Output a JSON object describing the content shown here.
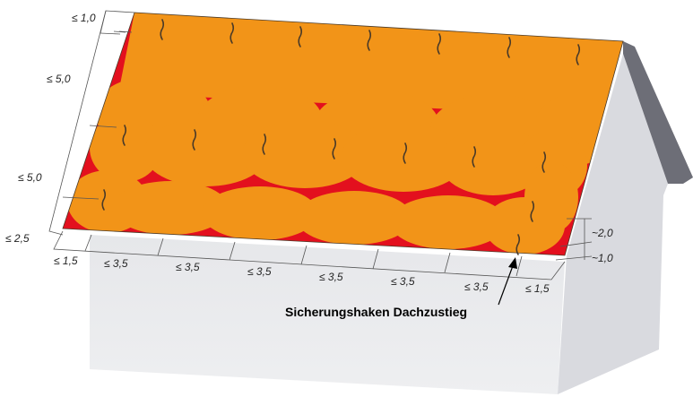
{
  "diagram": {
    "left_dimensions": [
      {
        "text": "≤ 1,0"
      },
      {
        "text": "≤ 5,0"
      },
      {
        "text": "≤ 5,0"
      },
      {
        "text": "≤ 2,5"
      }
    ],
    "bottom_dimensions": [
      {
        "text": "≤ 1,5"
      },
      {
        "text": "≤ 3,5"
      },
      {
        "text": "≤ 3,5"
      },
      {
        "text": "≤ 3,5"
      },
      {
        "text": "≤ 3,5"
      },
      {
        "text": "≤ 3,5"
      },
      {
        "text": "≤ 3,5"
      },
      {
        "text": "≤ 1,5"
      }
    ],
    "right_dimensions": [
      {
        "text": "~2,0"
      },
      {
        "text": "~1,0"
      }
    ],
    "callout": "Sicherungshaken Dachzustieg",
    "colors": {
      "coverage": "#f29418",
      "gap": "#e3101e",
      "roof_side": "#6e6f78",
      "wall_front": "#e8e8ea",
      "wall_side": "#d7d8dc",
      "hook": "#5a4a30"
    },
    "hook_icon": "safety-hook-icon"
  }
}
